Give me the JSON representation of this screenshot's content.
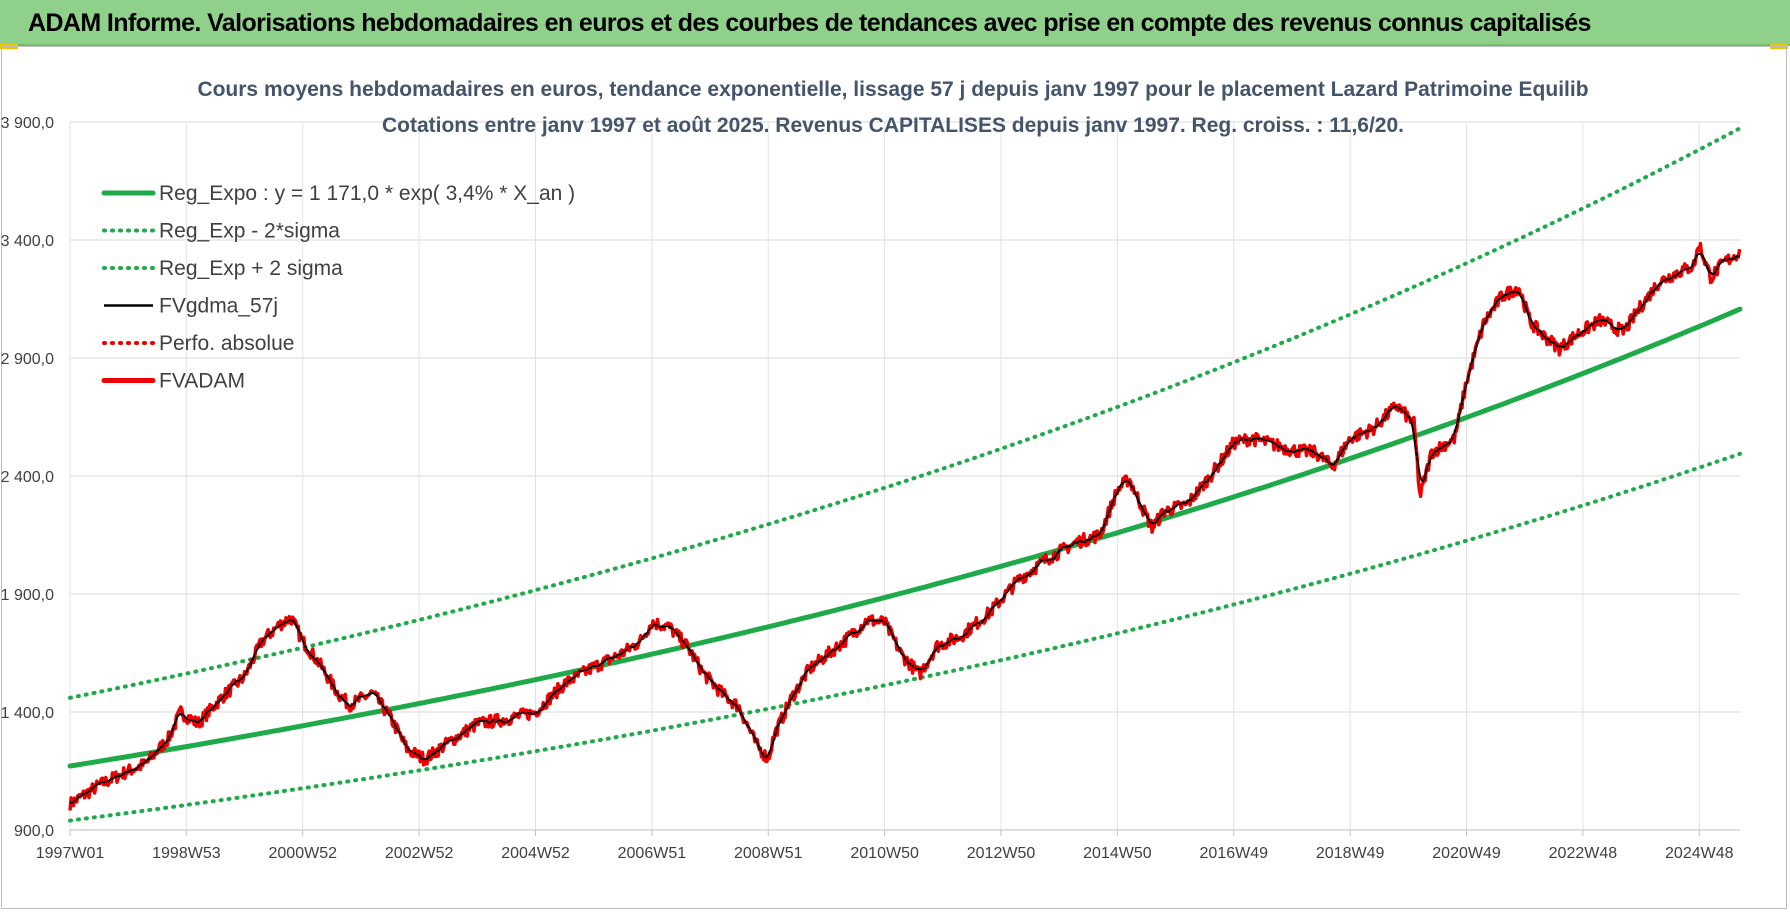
{
  "banner": {
    "text": "ADAM Informe. Valorisations hebdomadaires en euros et des courbes de tendances avec prise en compte des revenus connus capitalisés"
  },
  "colors": {
    "banner_bg": "#8fd18a",
    "trend": "#1faa4a",
    "smooth": "#000000",
    "price": "#ee0000",
    "absolute": "#ee0000"
  },
  "chart_data": {
    "type": "line",
    "title": "Cours moyens hebdomadaires en euros, tendance exponentielle, lissage 57 j depuis janv 1997 pour le placement Lazard Patrimoine Equilib",
    "subtitle": "Cotations entre janv 1997 et août 2025.  Revenus CAPITALISES  depuis janv 1997. Reg.  croiss. : 11,6/20.",
    "xlabel": "",
    "ylabel": "",
    "ylim": [
      900,
      3900
    ],
    "y_ticks": [
      "900,0",
      "1 400,0",
      "1 900,0",
      "2 400,0",
      "2 900,0",
      "3 400,0",
      "3 900,0"
    ],
    "x_ticks": [
      "1997W01",
      "1998W53",
      "2000W52",
      "2002W52",
      "2004W52",
      "2006W51",
      "2008W51",
      "2010W50",
      "2012W50",
      "2014W50",
      "2016W49",
      "2018W49",
      "2020W49",
      "2022W48",
      "2024W48"
    ],
    "x_tick_years": [
      1997.0,
      1999.0,
      2001.0,
      2003.0,
      2005.0,
      2007.0,
      2009.0,
      2011.0,
      2013.0,
      2015.0,
      2017.0,
      2019.0,
      2021.0,
      2023.0,
      2025.0
    ],
    "xlim": [
      1997.0,
      2025.7
    ],
    "grid": true,
    "legend_position": "top-left",
    "series": [
      {
        "name": "Reg_Expo : y = 1 171,0 * exp( 3,4% *  X_an )",
        "style": "solid-thick",
        "color": "#1faa4a",
        "formula": {
          "a": 1171.0,
          "rate": 0.034
        }
      },
      {
        "name": "Reg_Exp - 2*sigma",
        "style": "dotted",
        "color": "#1faa4a",
        "formula": {
          "a": 940.0,
          "rate": 0.034
        }
      },
      {
        "name": "Reg_Exp + 2 sigma",
        "style": "dotted",
        "color": "#1faa4a",
        "formula": {
          "a": 1460.0,
          "rate": 0.034
        }
      },
      {
        "name": "FVgdma_57j",
        "style": "solid",
        "color": "#000000"
      },
      {
        "name": "Perfo. absolue",
        "style": "dotted",
        "color": "#ee0000"
      },
      {
        "name": "FVADAM",
        "style": "solid-thick",
        "color": "#ee0000",
        "x": [
          1997.0,
          1997.5,
          1998.0,
          1998.3,
          1998.7,
          1998.9,
          1999.2,
          1999.6,
          2000.0,
          2000.3,
          2000.6,
          2000.8,
          2001.0,
          2001.3,
          2001.6,
          2001.8,
          2002.2,
          2002.5,
          2002.8,
          2003.1,
          2003.5,
          2004.0,
          2004.5,
          2005.0,
          2005.5,
          2006.0,
          2006.5,
          2006.8,
          2007.0,
          2007.3,
          2007.6,
          2007.9,
          2008.2,
          2008.5,
          2008.8,
          2009.0,
          2009.1,
          2009.4,
          2009.7,
          2010.0,
          2010.4,
          2010.7,
          2011.0,
          2011.3,
          2011.6,
          2011.9,
          2012.3,
          2012.8,
          2013.3,
          2013.8,
          2014.3,
          2014.7,
          2015.0,
          2015.2,
          2015.4,
          2015.6,
          2015.8,
          2016.2,
          2016.6,
          2017.0,
          2017.3,
          2017.6,
          2018.0,
          2018.4,
          2018.7,
          2019.0,
          2019.4,
          2019.8,
          2020.1,
          2020.2,
          2020.4,
          2020.8,
          2021.0,
          2021.3,
          2021.6,
          2021.9,
          2022.1,
          2022.3,
          2022.6,
          2022.9,
          2023.3,
          2023.7,
          2024.0,
          2024.3,
          2024.6,
          2024.9,
          2025.0,
          2025.2,
          2025.4,
          2025.7
        ],
        "y": [
          1010,
          1090,
          1150,
          1180,
          1290,
          1400,
          1350,
          1460,
          1550,
          1700,
          1770,
          1800,
          1700,
          1600,
          1480,
          1430,
          1480,
          1380,
          1240,
          1200,
          1270,
          1350,
          1370,
          1400,
          1520,
          1590,
          1650,
          1700,
          1780,
          1760,
          1680,
          1560,
          1480,
          1420,
          1260,
          1200,
          1300,
          1460,
          1580,
          1640,
          1720,
          1790,
          1780,
          1640,
          1560,
          1680,
          1720,
          1820,
          1960,
          2050,
          2120,
          2150,
          2340,
          2390,
          2280,
          2180,
          2250,
          2280,
          2400,
          2540,
          2560,
          2540,
          2510,
          2500,
          2440,
          2560,
          2600,
          2700,
          2620,
          2310,
          2500,
          2560,
          2800,
          3050,
          3160,
          3200,
          3050,
          3000,
          2940,
          3000,
          3060,
          3010,
          3120,
          3220,
          3260,
          3290,
          3380,
          3240,
          3300,
          3350
        ]
      }
    ]
  }
}
